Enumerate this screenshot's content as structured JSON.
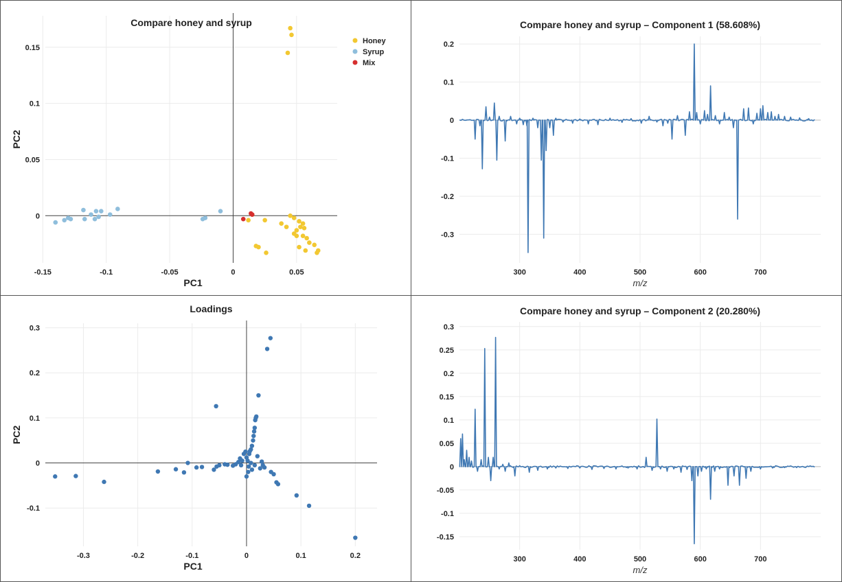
{
  "chart_data": [
    {
      "id": "scores",
      "type": "scatter",
      "title": "Compare honey and syrup",
      "xlabel": "PC1",
      "ylabel": "PC2",
      "xlim": [
        -0.148,
        0.082
      ],
      "ylim": [
        -0.042,
        0.178
      ],
      "xticks": [
        -0.15,
        -0.1,
        -0.05,
        0,
        0.05
      ],
      "xtick_labels": [
        "-0.15",
        "-0.1",
        "-0.05",
        "0",
        "0.05"
      ],
      "yticks": [
        0,
        0.05,
        0.1,
        0.15
      ],
      "ytick_labels": [
        "0",
        "0.05",
        "0.1",
        "0.15"
      ],
      "zero_lines": true,
      "grid": true,
      "legend": "top-right",
      "series": [
        {
          "name": "Honey",
          "color": "#f2c832",
          "points": [
            [
              0.045,
              0.167
            ],
            [
              0.046,
              0.161
            ],
            [
              0.043,
              0.145
            ],
            [
              0.015,
              0.001
            ],
            [
              0.012,
              -0.004
            ],
            [
              0.018,
              -0.027
            ],
            [
              0.02,
              -0.028
            ],
            [
              0.026,
              -0.033
            ],
            [
              0.025,
              -0.004
            ],
            [
              0.038,
              -0.007
            ],
            [
              0.042,
              -0.01
            ],
            [
              0.045,
              0.0
            ],
            [
              0.048,
              -0.002
            ],
            [
              0.05,
              -0.013
            ],
            [
              0.052,
              -0.005
            ],
            [
              0.055,
              -0.007
            ],
            [
              0.053,
              -0.01
            ],
            [
              0.05,
              -0.018
            ],
            [
              0.055,
              -0.018
            ],
            [
              0.058,
              -0.02
            ],
            [
              0.06,
              -0.024
            ],
            [
              0.052,
              -0.028
            ],
            [
              0.057,
              -0.031
            ],
            [
              0.064,
              -0.026
            ],
            [
              0.067,
              -0.031
            ],
            [
              0.066,
              -0.033
            ],
            [
              0.048,
              -0.016
            ],
            [
              0.056,
              -0.011
            ]
          ]
        },
        {
          "name": "Syrup",
          "color": "#8fbedc",
          "points": [
            [
              -0.14,
              -0.006
            ],
            [
              -0.133,
              -0.004
            ],
            [
              -0.13,
              -0.002
            ],
            [
              -0.128,
              -0.003
            ],
            [
              -0.118,
              0.005
            ],
            [
              -0.117,
              -0.003
            ],
            [
              -0.112,
              0.001
            ],
            [
              -0.109,
              -0.003
            ],
            [
              -0.108,
              0.004
            ],
            [
              -0.104,
              0.004
            ],
            [
              -0.106,
              -0.001
            ],
            [
              -0.097,
              0.001
            ],
            [
              -0.091,
              0.006
            ],
            [
              -0.024,
              -0.003
            ],
            [
              -0.022,
              -0.002
            ],
            [
              -0.01,
              0.004
            ]
          ]
        },
        {
          "name": "Mix",
          "color": "#d62f2f",
          "points": [
            [
              0.008,
              -0.003
            ],
            [
              0.015,
              0.001
            ],
            [
              0.014,
              0.002
            ]
          ]
        }
      ]
    },
    {
      "id": "comp1",
      "type": "line",
      "title": "Compare honey and syrup – Component 1 (58.608%)",
      "xlabel": "m/z",
      "ylabel": "",
      "xlim": [
        200,
        800
      ],
      "ylim": [
        -0.375,
        0.22
      ],
      "xticks": [
        300,
        400,
        500,
        600,
        700
      ],
      "xtick_labels": [
        "300",
        "400",
        "500",
        "600",
        "700"
      ],
      "yticks": [
        0.2,
        0.1,
        0,
        -0.1,
        -0.2,
        -0.3
      ],
      "ytick_labels": [
        "0.2",
        "0.1",
        "0",
        "-0.1",
        "-0.2",
        "-0.3"
      ],
      "grid": true,
      "color": "#3f78b3",
      "peaks": [
        [
          226,
          -0.05
        ],
        [
          234,
          -0.015
        ],
        [
          238,
          -0.128
        ],
        [
          244,
          0.035
        ],
        [
          250,
          0.008
        ],
        [
          258,
          0.045
        ],
        [
          262,
          -0.105
        ],
        [
          266,
          0.01
        ],
        [
          276,
          -0.055
        ],
        [
          285,
          0.01
        ],
        [
          295,
          -0.01
        ],
        [
          300,
          0.005
        ],
        [
          306,
          -0.012
        ],
        [
          312,
          -0.015
        ],
        [
          314,
          -0.348
        ],
        [
          322,
          0.005
        ],
        [
          330,
          -0.02
        ],
        [
          336,
          -0.105
        ],
        [
          340,
          -0.31
        ],
        [
          344,
          -0.08
        ],
        [
          350,
          -0.02
        ],
        [
          356,
          -0.04
        ],
        [
          360,
          0.005
        ],
        [
          372,
          -0.005
        ],
        [
          388,
          -0.008
        ],
        [
          400,
          0.003
        ],
        [
          414,
          -0.01
        ],
        [
          430,
          -0.012
        ],
        [
          450,
          0.005
        ],
        [
          470,
          -0.006
        ],
        [
          485,
          0.004
        ],
        [
          502,
          -0.008
        ],
        [
          515,
          0.01
        ],
        [
          528,
          -0.005
        ],
        [
          538,
          -0.015
        ],
        [
          546,
          -0.008
        ],
        [
          553,
          -0.05
        ],
        [
          562,
          0.012
        ],
        [
          575,
          -0.04
        ],
        [
          582,
          0.022
        ],
        [
          590,
          0.2
        ],
        [
          594,
          0.02
        ],
        [
          600,
          -0.01
        ],
        [
          607,
          0.025
        ],
        [
          612,
          0.015
        ],
        [
          617,
          0.09
        ],
        [
          625,
          0.012
        ],
        [
          632,
          -0.01
        ],
        [
          640,
          0.02
        ],
        [
          648,
          0.008
        ],
        [
          655,
          -0.02
        ],
        [
          662,
          -0.26
        ],
        [
          672,
          0.03
        ],
        [
          680,
          0.032
        ],
        [
          688,
          -0.01
        ],
        [
          694,
          0.018
        ],
        [
          700,
          0.03
        ],
        [
          704,
          0.038
        ],
        [
          712,
          0.02
        ],
        [
          718,
          0.022
        ],
        [
          724,
          0.01
        ],
        [
          730,
          0.015
        ],
        [
          740,
          0.01
        ],
        [
          750,
          0.008
        ],
        [
          765,
          0.006
        ],
        [
          780,
          0.004
        ]
      ]
    },
    {
      "id": "loadings",
      "type": "scatter",
      "title": "Loadings",
      "xlabel": "PC1",
      "ylabel": "PC2",
      "xlim": [
        -0.37,
        0.24
      ],
      "ylim": [
        -0.185,
        0.31
      ],
      "xticks": [
        -0.3,
        -0.2,
        -0.1,
        0,
        0.1,
        0.2
      ],
      "xtick_labels": [
        "-0.3",
        "-0.2",
        "-0.1",
        "0",
        "0.1",
        "0.2"
      ],
      "yticks": [
        -0.1,
        0,
        0.1,
        0.2,
        0.3
      ],
      "ytick_labels": [
        "-0.1",
        "0",
        "0.1",
        "0.2",
        "0.3"
      ],
      "zero_lines": true,
      "grid": true,
      "color": "#3f78b3",
      "points": [
        [
          -0.352,
          -0.03
        ],
        [
          -0.314,
          -0.029
        ],
        [
          -0.262,
          -0.042
        ],
        [
          -0.163,
          -0.019
        ],
        [
          -0.13,
          -0.014
        ],
        [
          -0.115,
          -0.021
        ],
        [
          -0.108,
          0.0
        ],
        [
          -0.092,
          -0.01
        ],
        [
          -0.082,
          -0.009
        ],
        [
          -0.06,
          -0.015
        ],
        [
          -0.055,
          -0.008
        ],
        [
          -0.05,
          -0.005
        ],
        [
          -0.056,
          0.126
        ],
        [
          -0.04,
          -0.003
        ],
        [
          -0.035,
          -0.004
        ],
        [
          -0.025,
          -0.006
        ],
        [
          -0.02,
          -0.003
        ],
        [
          -0.015,
          0.002
        ],
        [
          -0.01,
          -0.005
        ],
        [
          -0.012,
          0.01
        ],
        [
          -0.005,
          0.02
        ],
        [
          -0.002,
          0.025
        ],
        [
          0.0,
          0.012
        ],
        [
          0.002,
          0.005
        ],
        [
          0.004,
          -0.008
        ],
        [
          0.005,
          0.02
        ],
        [
          0.006,
          0.026
        ],
        [
          0.008,
          0.03
        ],
        [
          0.01,
          0.038
        ],
        [
          0.012,
          0.05
        ],
        [
          0.013,
          0.06
        ],
        [
          0.014,
          0.07
        ],
        [
          0.015,
          0.078
        ],
        [
          0.016,
          0.095
        ],
        [
          0.017,
          0.1
        ],
        [
          0.018,
          0.103
        ],
        [
          0.022,
          0.15
        ],
        [
          0.028,
          0.003
        ],
        [
          0.03,
          -0.005
        ],
        [
          0.033,
          -0.01
        ],
        [
          0.038,
          0.253
        ],
        [
          0.044,
          0.277
        ],
        [
          0.045,
          -0.02
        ],
        [
          0.05,
          -0.025
        ],
        [
          0.055,
          -0.043
        ],
        [
          0.058,
          -0.047
        ],
        [
          0.092,
          -0.072
        ],
        [
          0.115,
          -0.095
        ],
        [
          0.2,
          -0.166
        ],
        [
          0.0,
          -0.03
        ],
        [
          0.003,
          -0.02
        ],
        [
          0.01,
          -0.015
        ],
        [
          0.02,
          0.015
        ],
        [
          0.025,
          -0.012
        ],
        [
          0.008,
          0.0
        ],
        [
          0.015,
          -0.005
        ],
        [
          -0.008,
          0.005
        ]
      ]
    },
    {
      "id": "comp2",
      "type": "line",
      "title": "Compare honey and syrup – Component 2 (20.280%)",
      "xlabel": "m/z",
      "ylabel": "",
      "xlim": [
        200,
        800
      ],
      "ylim": [
        -0.178,
        0.31
      ],
      "xticks": [
        300,
        400,
        500,
        600,
        700
      ],
      "xtick_labels": [
        "300",
        "400",
        "500",
        "600",
        "700"
      ],
      "yticks": [
        0.3,
        0.25,
        0.2,
        0.15,
        0.1,
        0.05,
        0,
        -0.05,
        -0.1,
        -0.15
      ],
      "ytick_labels": [
        "0.3",
        "0.25",
        "0.2",
        "0.15",
        "0.1",
        "0.05",
        "0",
        "-0.05",
        "-0.1",
        "-0.15"
      ],
      "grid": true,
      "color": "#3f78b3",
      "peaks": [
        [
          202,
          0.06
        ],
        [
          205,
          0.07
        ],
        [
          208,
          0.015
        ],
        [
          212,
          0.035
        ],
        [
          216,
          0.02
        ],
        [
          220,
          0.012
        ],
        [
          226,
          0.123
        ],
        [
          230,
          -0.01
        ],
        [
          236,
          0.015
        ],
        [
          242,
          0.253
        ],
        [
          248,
          0.02
        ],
        [
          252,
          -0.03
        ],
        [
          256,
          0.02
        ],
        [
          260,
          0.277
        ],
        [
          266,
          -0.005
        ],
        [
          272,
          0.005
        ],
        [
          276,
          -0.01
        ],
        [
          282,
          0.008
        ],
        [
          292,
          -0.02
        ],
        [
          300,
          0.002
        ],
        [
          316,
          -0.012
        ],
        [
          330,
          -0.008
        ],
        [
          346,
          -0.005
        ],
        [
          360,
          -0.003
        ],
        [
          380,
          -0.004
        ],
        [
          400,
          -0.003
        ],
        [
          420,
          -0.006
        ],
        [
          440,
          -0.004
        ],
        [
          460,
          -0.005
        ],
        [
          480,
          -0.003
        ],
        [
          495,
          -0.005
        ],
        [
          510,
          0.02
        ],
        [
          520,
          -0.008
        ],
        [
          528,
          0.102
        ],
        [
          534,
          -0.005
        ],
        [
          545,
          -0.01
        ],
        [
          556,
          -0.005
        ],
        [
          568,
          -0.012
        ],
        [
          578,
          -0.006
        ],
        [
          586,
          -0.03
        ],
        [
          590,
          -0.165
        ],
        [
          596,
          -0.02
        ],
        [
          602,
          -0.01
        ],
        [
          610,
          -0.005
        ],
        [
          617,
          -0.07
        ],
        [
          624,
          -0.01
        ],
        [
          632,
          -0.005
        ],
        [
          646,
          -0.04
        ],
        [
          656,
          -0.02
        ],
        [
          665,
          -0.04
        ],
        [
          676,
          -0.025
        ],
        [
          684,
          -0.01
        ],
        [
          700,
          -0.005
        ],
        [
          720,
          -0.003
        ],
        [
          740,
          -0.002
        ],
        [
          760,
          -0.002
        ]
      ]
    }
  ]
}
